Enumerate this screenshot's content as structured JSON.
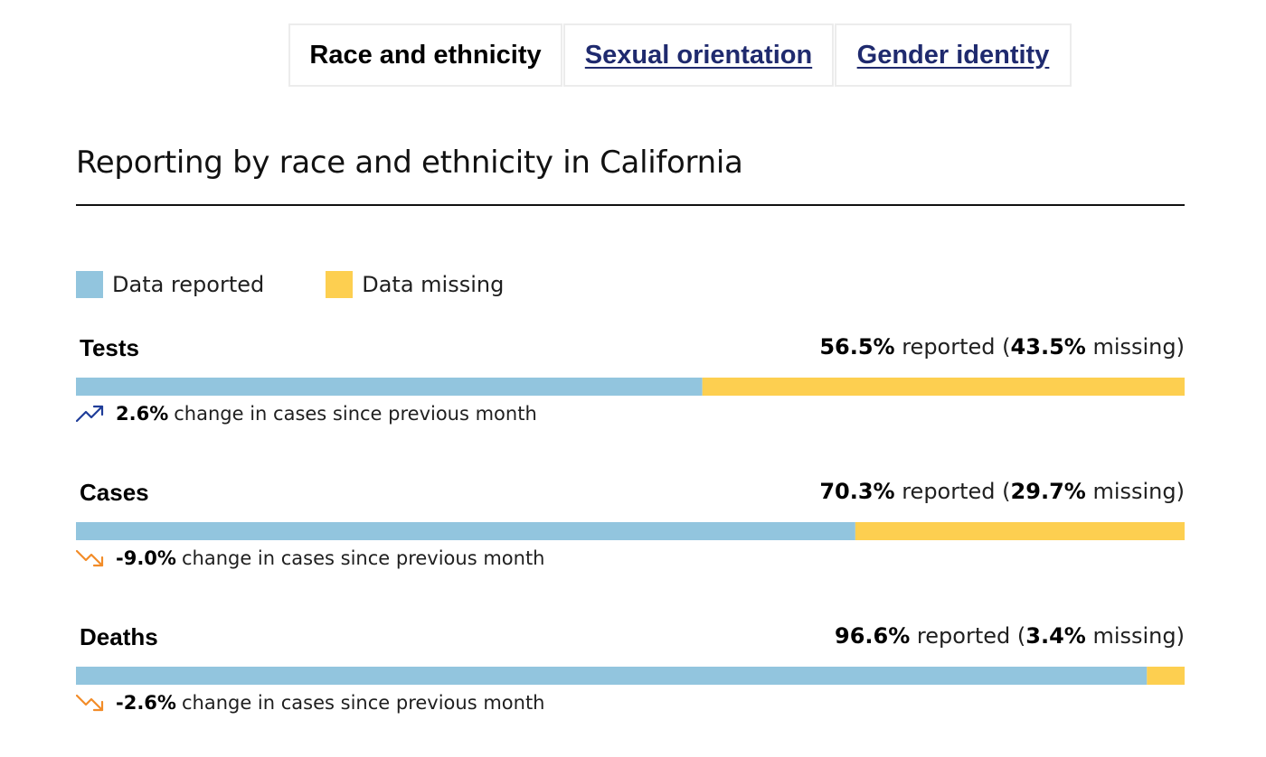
{
  "tabs": [
    {
      "label": "Race and ethnicity",
      "active": true
    },
    {
      "label": "Sexual orientation",
      "active": false
    },
    {
      "label": "Gender identity",
      "active": false
    }
  ],
  "heading": "Reporting by race and ethnicity in California",
  "legend": [
    {
      "label": "Data reported",
      "color": "#92c5de"
    },
    {
      "label": "Data missing",
      "color": "#fdcf50"
    }
  ],
  "text": {
    "reported_word": "reported",
    "missing_word": "missing",
    "open_paren": "(",
    "close_paren": ")",
    "change_suffix": "change in cases since previous month"
  },
  "chart_data": {
    "type": "bar",
    "orientation": "horizontal-stacked",
    "categories": [
      "Tests",
      "Cases",
      "Deaths"
    ],
    "series": [
      {
        "name": "Data reported",
        "values": [
          56.5,
          70.3,
          96.6
        ],
        "color": "#92c5de"
      },
      {
        "name": "Data missing",
        "values": [
          43.5,
          29.7,
          3.4
        ],
        "color": "#fdcf50"
      }
    ],
    "value_labels": {
      "reported": [
        "56.5%",
        "70.3%",
        "96.6%"
      ],
      "missing": [
        "43.5%",
        "29.7%",
        "3.4%"
      ]
    },
    "changes": [
      {
        "value": "2.6%",
        "direction": "up",
        "icon": "trend-up-icon",
        "color": "#1f3d99"
      },
      {
        "value": "-9.0%",
        "direction": "down",
        "icon": "trend-down-icon",
        "color": "#f28c28"
      },
      {
        "value": "-2.6%",
        "direction": "down",
        "icon": "trend-down-icon",
        "color": "#f28c28"
      }
    ],
    "xlim": [
      0,
      100
    ],
    "title": "Reporting by race and ethnicity in California",
    "legend_position": "top-left"
  }
}
